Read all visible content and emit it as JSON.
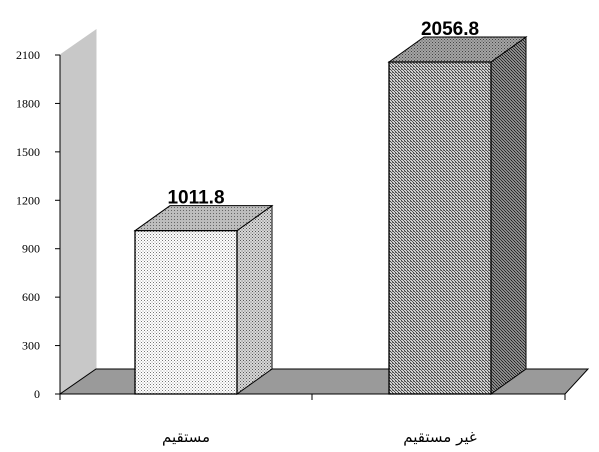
{
  "chart_data": {
    "type": "bar",
    "categories": [
      "مستقيم",
      "غير مستقيم"
    ],
    "values": [
      1011.8,
      2056.8
    ],
    "value_labels": [
      "1011.8",
      "2056.8"
    ],
    "yticks": [
      0,
      300,
      600,
      900,
      1200,
      1500,
      1800,
      2100
    ],
    "ylim": [
      0,
      2100
    ],
    "title": "",
    "xlabel": "",
    "ylabel": "",
    "grid": false,
    "style": "3d",
    "bar_fill_patterns": [
      "light-dotted",
      "dense-dotted"
    ]
  }
}
